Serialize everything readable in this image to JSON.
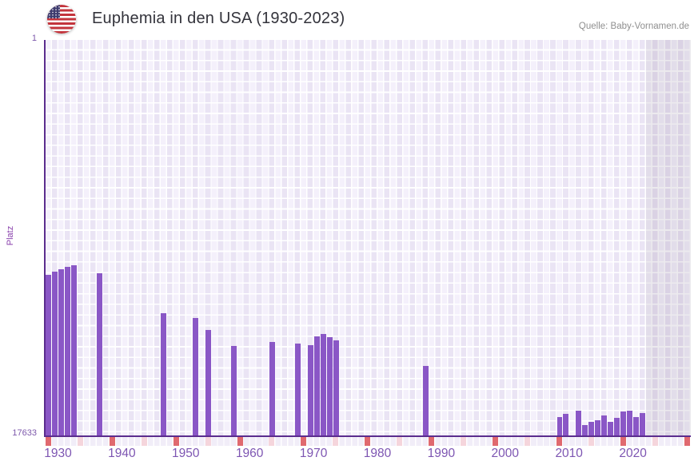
{
  "header": {
    "title": "Euphemia in den USA (1930-2023)",
    "source": "Quelle: Baby-Vornamen.de",
    "flag_icon": "us-flag-icon"
  },
  "y_axis": {
    "label": "Platz",
    "top_tick": "1",
    "bottom_tick": "17633",
    "min": 1,
    "max": 17633,
    "inverted": true
  },
  "x_axis": {
    "tick_labels": [
      "1930",
      "1940",
      "1950",
      "1960",
      "1970",
      "1980",
      "1990",
      "2000",
      "2010",
      "2020"
    ],
    "five_year_marker_start": 1930,
    "five_year_marker_end": 2030,
    "marker_step": 5
  },
  "no_data_region": {
    "from_year": 2024,
    "to_year": 2030
  },
  "colors": {
    "bar": "#8a57c6",
    "axis": "#5b2d8e",
    "tick_text": "#7d55b2",
    "grid_light": "#f4f0fb",
    "grid_dark": "#eae4f4",
    "marker_decade": "#e0696f",
    "marker_half_decade": "#f5d5dc",
    "source_text": "#8f8f8f",
    "title_text": "#33333b"
  },
  "chart_data": {
    "type": "bar",
    "title": "Euphemia in den USA (1930-2023)",
    "xlabel": "",
    "ylabel": "Platz",
    "x_range": [
      1930,
      2030
    ],
    "ylim": [
      17633,
      1
    ],
    "y_axis_inverted_rank_scale": true,
    "grid": true,
    "years": [
      1930,
      1931,
      1932,
      1933,
      1934,
      1938,
      1948,
      1953,
      1955,
      1959,
      1965,
      1969,
      1971,
      1972,
      1973,
      1974,
      1975,
      1989,
      2010,
      2011,
      2013,
      2014,
      2015,
      2016,
      2017,
      2018,
      2019,
      2020,
      2021,
      2022,
      2023
    ],
    "ranks": [
      10470,
      10320,
      10220,
      10130,
      10060,
      10400,
      12190,
      12390,
      12920,
      13630,
      13470,
      13550,
      13590,
      13220,
      13120,
      13250,
      13400,
      14550,
      16800,
      16670,
      16510,
      17180,
      17040,
      16970,
      16730,
      17040,
      16850,
      16560,
      16510,
      16800,
      16630
    ],
    "note_years_without_data_in_range": [
      1935,
      1936,
      1937,
      1939,
      1940,
      1941,
      1942,
      1943,
      1944,
      1945,
      1946,
      1947,
      1949,
      1950,
      1951,
      1952,
      1954,
      1956,
      1957,
      1958,
      1960,
      1961,
      1962,
      1963,
      1964,
      1966,
      1967,
      1968,
      1970,
      1976,
      1977,
      1978,
      1979,
      1980,
      1981,
      1982,
      1983,
      1984,
      1985,
      1986,
      1987,
      1988,
      1990,
      1991,
      1992,
      1993,
      1994,
      1995,
      1996,
      1997,
      1998,
      1999,
      2000,
      2001,
      2002,
      2003,
      2004,
      2005,
      2006,
      2007,
      2008,
      2009,
      2012
    ]
  }
}
